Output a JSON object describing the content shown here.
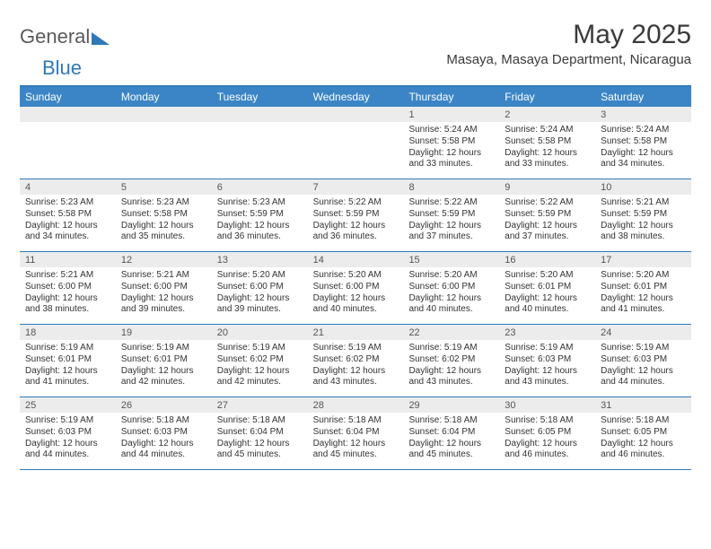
{
  "brand": {
    "part1": "General",
    "part2": "Blue"
  },
  "title": {
    "month": "May 2025",
    "location": "Masaya, Masaya Department, Nicaragua"
  },
  "colors": {
    "header_bg": "#3b85c6",
    "accent": "#2f79b9",
    "num_bg": "#ececec",
    "text": "#333333"
  },
  "day_names": [
    "Sunday",
    "Monday",
    "Tuesday",
    "Wednesday",
    "Thursday",
    "Friday",
    "Saturday"
  ],
  "weeks": [
    [
      {
        "empty": true
      },
      {
        "empty": true
      },
      {
        "empty": true
      },
      {
        "empty": true
      },
      {
        "num": "1",
        "sunrise": "5:24 AM",
        "sunset": "5:58 PM",
        "daylight": "12 hours and 33 minutes."
      },
      {
        "num": "2",
        "sunrise": "5:24 AM",
        "sunset": "5:58 PM",
        "daylight": "12 hours and 33 minutes."
      },
      {
        "num": "3",
        "sunrise": "5:24 AM",
        "sunset": "5:58 PM",
        "daylight": "12 hours and 34 minutes."
      }
    ],
    [
      {
        "num": "4",
        "sunrise": "5:23 AM",
        "sunset": "5:58 PM",
        "daylight": "12 hours and 34 minutes."
      },
      {
        "num": "5",
        "sunrise": "5:23 AM",
        "sunset": "5:58 PM",
        "daylight": "12 hours and 35 minutes."
      },
      {
        "num": "6",
        "sunrise": "5:23 AM",
        "sunset": "5:59 PM",
        "daylight": "12 hours and 36 minutes."
      },
      {
        "num": "7",
        "sunrise": "5:22 AM",
        "sunset": "5:59 PM",
        "daylight": "12 hours and 36 minutes."
      },
      {
        "num": "8",
        "sunrise": "5:22 AM",
        "sunset": "5:59 PM",
        "daylight": "12 hours and 37 minutes."
      },
      {
        "num": "9",
        "sunrise": "5:22 AM",
        "sunset": "5:59 PM",
        "daylight": "12 hours and 37 minutes."
      },
      {
        "num": "10",
        "sunrise": "5:21 AM",
        "sunset": "5:59 PM",
        "daylight": "12 hours and 38 minutes."
      }
    ],
    [
      {
        "num": "11",
        "sunrise": "5:21 AM",
        "sunset": "6:00 PM",
        "daylight": "12 hours and 38 minutes."
      },
      {
        "num": "12",
        "sunrise": "5:21 AM",
        "sunset": "6:00 PM",
        "daylight": "12 hours and 39 minutes."
      },
      {
        "num": "13",
        "sunrise": "5:20 AM",
        "sunset": "6:00 PM",
        "daylight": "12 hours and 39 minutes."
      },
      {
        "num": "14",
        "sunrise": "5:20 AM",
        "sunset": "6:00 PM",
        "daylight": "12 hours and 40 minutes."
      },
      {
        "num": "15",
        "sunrise": "5:20 AM",
        "sunset": "6:00 PM",
        "daylight": "12 hours and 40 minutes."
      },
      {
        "num": "16",
        "sunrise": "5:20 AM",
        "sunset": "6:01 PM",
        "daylight": "12 hours and 40 minutes."
      },
      {
        "num": "17",
        "sunrise": "5:20 AM",
        "sunset": "6:01 PM",
        "daylight": "12 hours and 41 minutes."
      }
    ],
    [
      {
        "num": "18",
        "sunrise": "5:19 AM",
        "sunset": "6:01 PM",
        "daylight": "12 hours and 41 minutes."
      },
      {
        "num": "19",
        "sunrise": "5:19 AM",
        "sunset": "6:01 PM",
        "daylight": "12 hours and 42 minutes."
      },
      {
        "num": "20",
        "sunrise": "5:19 AM",
        "sunset": "6:02 PM",
        "daylight": "12 hours and 42 minutes."
      },
      {
        "num": "21",
        "sunrise": "5:19 AM",
        "sunset": "6:02 PM",
        "daylight": "12 hours and 43 minutes."
      },
      {
        "num": "22",
        "sunrise": "5:19 AM",
        "sunset": "6:02 PM",
        "daylight": "12 hours and 43 minutes."
      },
      {
        "num": "23",
        "sunrise": "5:19 AM",
        "sunset": "6:03 PM",
        "daylight": "12 hours and 43 minutes."
      },
      {
        "num": "24",
        "sunrise": "5:19 AM",
        "sunset": "6:03 PM",
        "daylight": "12 hours and 44 minutes."
      }
    ],
    [
      {
        "num": "25",
        "sunrise": "5:19 AM",
        "sunset": "6:03 PM",
        "daylight": "12 hours and 44 minutes."
      },
      {
        "num": "26",
        "sunrise": "5:18 AM",
        "sunset": "6:03 PM",
        "daylight": "12 hours and 44 minutes."
      },
      {
        "num": "27",
        "sunrise": "5:18 AM",
        "sunset": "6:04 PM",
        "daylight": "12 hours and 45 minutes."
      },
      {
        "num": "28",
        "sunrise": "5:18 AM",
        "sunset": "6:04 PM",
        "daylight": "12 hours and 45 minutes."
      },
      {
        "num": "29",
        "sunrise": "5:18 AM",
        "sunset": "6:04 PM",
        "daylight": "12 hours and 45 minutes."
      },
      {
        "num": "30",
        "sunrise": "5:18 AM",
        "sunset": "6:05 PM",
        "daylight": "12 hours and 46 minutes."
      },
      {
        "num": "31",
        "sunrise": "5:18 AM",
        "sunset": "6:05 PM",
        "daylight": "12 hours and 46 minutes."
      }
    ]
  ],
  "labels": {
    "sunrise": "Sunrise: ",
    "sunset": "Sunset: ",
    "daylight": "Daylight: "
  }
}
